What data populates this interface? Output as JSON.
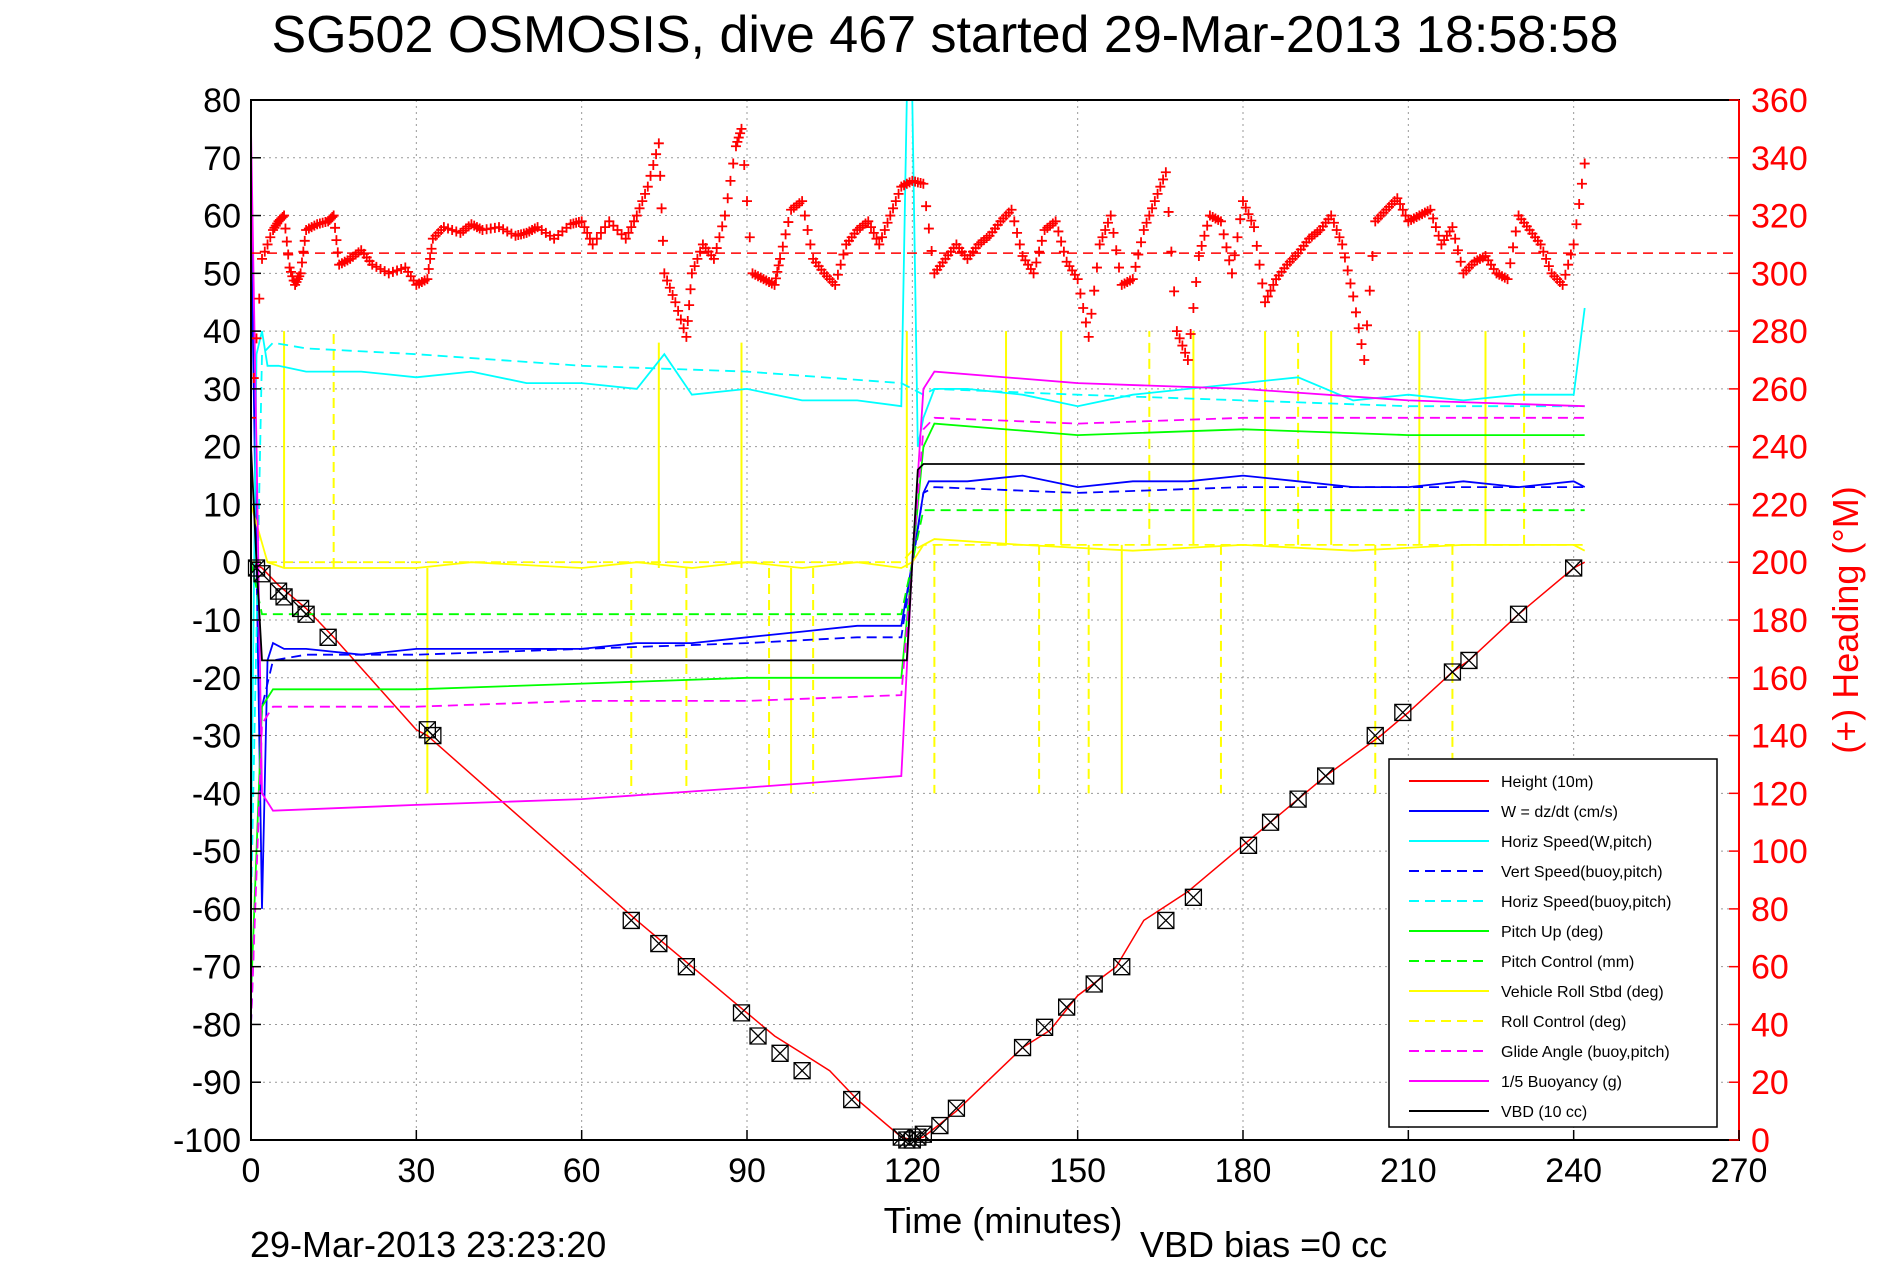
{
  "chart_data": {
    "type": "line",
    "title": "SG502 OSMOSIS, dive 467 started 29-Mar-2013 18:58:58",
    "xlabel": "Time (minutes)",
    "ylabel_right": "(+) Heading (°M)",
    "footer_left": "29-Mar-2013 23:23:20",
    "footer_right": "VBD bias =0 cc",
    "xlim": [
      0,
      270
    ],
    "ylim": [
      -100,
      80
    ],
    "ylim_right": [
      0,
      360
    ],
    "x_ticks": [
      "0",
      "30",
      "60",
      "90",
      "120",
      "150",
      "180",
      "210",
      "240",
      "270"
    ],
    "y_ticks": [
      "-100",
      "-90",
      "-80",
      "-70",
      "-60",
      "-50",
      "-40",
      "-30",
      "-20",
      "-10",
      "0",
      "10",
      "20",
      "30",
      "40",
      "50",
      "60",
      "70",
      "80"
    ],
    "y_right_ticks": [
      "0",
      "20",
      "40",
      "60",
      "80",
      "100",
      "120",
      "140",
      "160",
      "180",
      "200",
      "220",
      "240",
      "260",
      "280",
      "300",
      "320",
      "340",
      "360"
    ],
    "grid": true,
    "legend_position": "bottom-right",
    "colors": {
      "red": "#ff0000",
      "blue": "#0000ff",
      "cyan": "#00ffff",
      "green": "#00ff00",
      "yellow": "#ffff00",
      "magenta": "#ff00ff",
      "black": "#000000"
    },
    "series": [
      {
        "name": "Height (10m)",
        "color": "#ff0000",
        "dash": "solid",
        "x": [
          0,
          2,
          5,
          10,
          15,
          30,
          32,
          70,
          75,
          80,
          90,
          95,
          100,
          105,
          110,
          118,
          120,
          122,
          124,
          128,
          140,
          145,
          150,
          157,
          162,
          170,
          180,
          185,
          190,
          195,
          205,
          210,
          218,
          221,
          230,
          240,
          242
        ],
        "y": [
          0,
          -1,
          -4,
          -8,
          -13,
          -29,
          -30,
          -62,
          -66,
          -70,
          -78,
          -82,
          -85,
          -88,
          -93,
          -99.5,
          -100,
          -99.5,
          -98,
          -95,
          -84,
          -81,
          -75,
          -70,
          -62,
          -57,
          -49,
          -45,
          -41,
          -37,
          -30,
          -26,
          -19,
          -17,
          -9,
          -1,
          0
        ]
      },
      {
        "name": "W = dz/dt (cm/s)",
        "color": "#0000ff",
        "dash": "solid",
        "x": [
          0,
          1,
          2,
          3,
          4,
          6,
          10,
          20,
          30,
          40,
          50,
          60,
          70,
          80,
          90,
          100,
          110,
          118,
          120,
          122,
          123,
          124,
          130,
          140,
          150,
          160,
          170,
          180,
          190,
          200,
          210,
          220,
          230,
          240,
          242
        ],
        "y": [
          60,
          0,
          -60,
          -17,
          -14,
          -15,
          -15,
          -16,
          -15,
          -15,
          -15,
          -15,
          -14,
          -14,
          -13,
          -12,
          -11,
          -11,
          0,
          12,
          14,
          14,
          14,
          15,
          13,
          14,
          14,
          15,
          14,
          13,
          13,
          14,
          13,
          14,
          13
        ]
      },
      {
        "name": "Horiz Speed(W,pitch)",
        "color": "#00ffff",
        "dash": "solid",
        "x": [
          0,
          1,
          2,
          3,
          5,
          10,
          20,
          30,
          40,
          50,
          60,
          70,
          75,
          80,
          90,
          100,
          110,
          118,
          119,
          120,
          121,
          122,
          124,
          130,
          140,
          150,
          160,
          170,
          180,
          190,
          200,
          210,
          220,
          230,
          240,
          242
        ],
        "y": [
          -50,
          36,
          40,
          34,
          34,
          33,
          33,
          32,
          33,
          31,
          31,
          30,
          36,
          29,
          30,
          28,
          28,
          27,
          80,
          80,
          20,
          25,
          30,
          30,
          29,
          27,
          29,
          30,
          31,
          32,
          28,
          29,
          28,
          29,
          29,
          44
        ]
      },
      {
        "name": "Vert Speed(buoy,pitch)",
        "color": "#0000ff",
        "dash": "dashed",
        "x": [
          0,
          2,
          4,
          10,
          30,
          60,
          90,
          110,
          118,
          122,
          124,
          150,
          180,
          210,
          242
        ],
        "y": [
          -80,
          -25,
          -17,
          -16,
          -16,
          -15,
          -14,
          -13,
          -13,
          12,
          13,
          12,
          13,
          13,
          13
        ]
      },
      {
        "name": "Horiz Speed(buoy,pitch)",
        "color": "#00ffff",
        "dash": "dashed",
        "x": [
          0,
          2,
          4,
          10,
          30,
          60,
          90,
          118,
          122,
          124,
          150,
          180,
          210,
          242
        ],
        "y": [
          -60,
          36,
          38,
          37,
          36,
          34,
          33,
          31,
          29,
          30,
          29,
          28,
          27,
          27
        ]
      },
      {
        "name": "Pitch Up (deg)",
        "color": "#00ff00",
        "dash": "solid",
        "x": [
          0,
          2,
          4,
          10,
          30,
          60,
          90,
          118,
          122,
          124,
          150,
          180,
          210,
          242
        ],
        "y": [
          -75,
          -25,
          -22,
          -22,
          -22,
          -21,
          -20,
          -20,
          20,
          24,
          22,
          23,
          22,
          22
        ]
      },
      {
        "name": "Pitch Control (mm)",
        "color": "#00ff00",
        "dash": "dashed",
        "x": [
          0,
          2,
          5,
          8,
          118,
          120,
          122,
          124,
          242
        ],
        "y": [
          0,
          -9,
          -9,
          -9,
          -9,
          0,
          9,
          9,
          9
        ]
      },
      {
        "name": "Vehicle Roll Stbd (deg)",
        "color": "#ffff00",
        "dash": "solid",
        "x": [
          0,
          3,
          6,
          10,
          20,
          30,
          40,
          60,
          70,
          80,
          90,
          100,
          110,
          118,
          120,
          122,
          124,
          140,
          160,
          180,
          200,
          220,
          240,
          242
        ],
        "y": [
          10,
          0,
          -1,
          -1,
          -1,
          -1,
          0,
          -1,
          0,
          -1,
          0,
          -1,
          0,
          -1,
          0,
          3,
          4,
          3,
          2,
          3,
          2,
          3,
          3,
          2
        ]
      },
      {
        "name": "Roll Control (deg)",
        "color": "#ffff00",
        "dash": "dashed",
        "x": [
          0,
          3,
          6,
          118,
          120,
          122,
          124,
          242
        ],
        "y": [
          0,
          0,
          0,
          0,
          2,
          3,
          3,
          3
        ]
      },
      {
        "name": "Glide Angle (buoy,pitch)",
        "color": "#ff00ff",
        "dash": "dashed",
        "x": [
          0,
          2,
          4,
          10,
          30,
          60,
          90,
          118,
          122,
          124,
          150,
          180,
          210,
          242
        ],
        "y": [
          -80,
          -28,
          -25,
          -25,
          -25,
          -24,
          -24,
          -23,
          23,
          25,
          24,
          25,
          25,
          25
        ]
      },
      {
        "name": "1/5 Buoyancy (g)",
        "color": "#ff00ff",
        "dash": "solid",
        "x": [
          0,
          1,
          2,
          4,
          30,
          60,
          90,
          118,
          120,
          122,
          124,
          150,
          180,
          210,
          242
        ],
        "y": [
          75,
          20,
          -40,
          -43,
          -42,
          -41,
          -39,
          -37,
          0,
          30,
          33,
          31,
          30,
          28,
          27
        ]
      },
      {
        "name": "VBD (10 cc)",
        "color": "#000000",
        "dash": "solid",
        "x": [
          0,
          1,
          2,
          3,
          4,
          118,
          119,
          120,
          121,
          122,
          124,
          242
        ],
        "y": [
          20,
          0,
          -17,
          -17,
          -17,
          -17,
          -17,
          0,
          16,
          17,
          17,
          17
        ]
      }
    ],
    "roll_spikes": {
      "color": "#ffff00",
      "x": [
        6,
        15,
        32,
        69,
        74,
        79,
        89,
        94,
        98,
        102,
        119,
        124,
        137,
        143,
        147,
        152,
        158,
        163,
        171,
        176,
        184,
        190,
        196,
        204,
        212,
        218,
        224,
        231
      ],
      "y": [
        40,
        40,
        -40,
        -40,
        38,
        -40,
        38,
        -40,
        -40,
        -40,
        40,
        -40,
        40,
        -40,
        40,
        -40,
        -40,
        40,
        40,
        -40,
        40,
        40,
        40,
        -40,
        40,
        -40,
        40,
        40
      ]
    },
    "heading": {
      "name": "(+) Heading (°M)",
      "color": "#ff0000",
      "axis": "right",
      "mean_dashed": 307,
      "x": [
        0,
        2,
        4,
        5,
        6,
        7,
        8,
        9,
        10,
        12,
        14,
        15,
        16,
        18,
        20,
        22,
        25,
        28,
        30,
        32,
        33,
        35,
        38,
        40,
        42,
        45,
        48,
        50,
        52,
        55,
        58,
        60,
        62,
        65,
        68,
        70,
        72,
        74,
        75,
        77,
        79,
        80,
        82,
        84,
        86,
        88,
        89,
        91,
        93,
        95,
        96,
        98,
        100,
        102,
        104,
        106,
        108,
        110,
        112,
        114,
        116,
        118,
        120,
        122,
        124,
        126,
        128,
        130,
        132,
        134,
        136,
        138,
        140,
        142,
        144,
        146,
        148,
        150,
        152,
        154,
        156,
        158,
        160,
        162,
        164,
        166,
        168,
        170,
        172,
        174,
        176,
        178,
        180,
        182,
        184,
        186,
        188,
        190,
        192,
        194,
        196,
        198,
        200,
        202,
        204,
        206,
        208,
        210,
        212,
        214,
        216,
        218,
        220,
        222,
        224,
        226,
        228,
        230,
        232,
        234,
        236,
        238,
        240,
        242
      ],
      "y": [
        250,
        305,
        315,
        318,
        320,
        302,
        296,
        300,
        315,
        317,
        318,
        320,
        303,
        305,
        308,
        303,
        300,
        302,
        296,
        298,
        312,
        316,
        314,
        317,
        315,
        316,
        313,
        314,
        316,
        312,
        317,
        318,
        310,
        318,
        312,
        320,
        330,
        345,
        300,
        290,
        278,
        300,
        310,
        305,
        320,
        344,
        350,
        300,
        298,
        296,
        305,
        322,
        325,
        305,
        300,
        296,
        310,
        315,
        318,
        310,
        320,
        330,
        332,
        331,
        300,
        305,
        310,
        305,
        310,
        313,
        318,
        322,
        306,
        300,
        315,
        318,
        304,
        298,
        278,
        310,
        320,
        296,
        298,
        315,
        325,
        335,
        280,
        270,
        306,
        320,
        318,
        300,
        325,
        316,
        290,
        298,
        303,
        307,
        312,
        315,
        320,
        310,
        292,
        270,
        318,
        322,
        326,
        318,
        320,
        322,
        310,
        316,
        300,
        304,
        306,
        300,
        298,
        320,
        315,
        310,
        300,
        296,
        310,
        338
      ]
    },
    "markers": {
      "symbol": "x-box",
      "color": "#000000",
      "x": [
        1,
        2,
        5,
        6,
        9,
        10,
        14,
        32,
        33,
        69,
        74,
        79,
        89,
        92,
        96,
        100,
        109,
        118,
        119,
        120,
        121,
        122,
        125,
        128,
        140,
        144,
        148,
        153,
        158,
        166,
        171,
        181,
        185,
        190,
        195,
        204,
        209,
        218,
        221,
        230,
        240
      ],
      "y": [
        -1,
        -2,
        -5,
        -6,
        -8,
        -9,
        -13,
        -29,
        -30,
        -62,
        -66,
        -70,
        -78,
        -82,
        -85,
        -88,
        -93,
        -99.5,
        -100,
        -100,
        -99.5,
        -99,
        -97.5,
        -94.5,
        -84,
        -80.5,
        -77,
        -73,
        -70,
        -62,
        -58,
        -49,
        -45,
        -41,
        -37,
        -30,
        -26,
        -19,
        -17,
        -9,
        -1
      ]
    }
  }
}
